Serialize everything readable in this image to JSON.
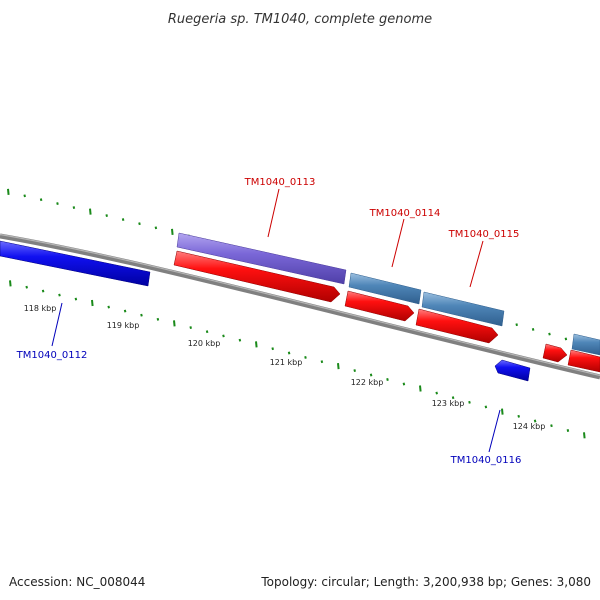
{
  "title": "Ruegeria sp. TM1040, complete genome",
  "footer": {
    "accession": "Accession: NC_008044",
    "stats": "Topology: circular; Length: 3,200,938 bp; Genes: 3,080"
  },
  "scale_labels": [
    "118 kbp",
    "119 kbp",
    "120 kbp",
    "121 kbp",
    "122 kbp",
    "123 kbp",
    "124 kbp"
  ],
  "genes": [
    {
      "id": "TM1040_0112",
      "strand": "minus",
      "color": "#0000ee",
      "labeled": true
    },
    {
      "id": "TM1040_0113",
      "strand": "plus",
      "color": "#cc0000",
      "labeled": true
    },
    {
      "id": "TM1040_0114",
      "strand": "plus",
      "color": "#cc0000",
      "labeled": true
    },
    {
      "id": "TM1040_0115",
      "strand": "plus",
      "color": "#cc0000",
      "labeled": true
    },
    {
      "id": "TM1040_0116",
      "strand": "minus",
      "color": "#0000ee",
      "labeled": true
    }
  ],
  "colors": {
    "backbone": "#808080",
    "cds_plus": "#ee0000",
    "cds_minus": "#0000ee",
    "feature_purple": "#7b68d8",
    "feature_steelblue": "#4f86b8",
    "ticks": "#1a8a1a",
    "label_red": "#cc0000",
    "label_blue": "#0000bb"
  }
}
